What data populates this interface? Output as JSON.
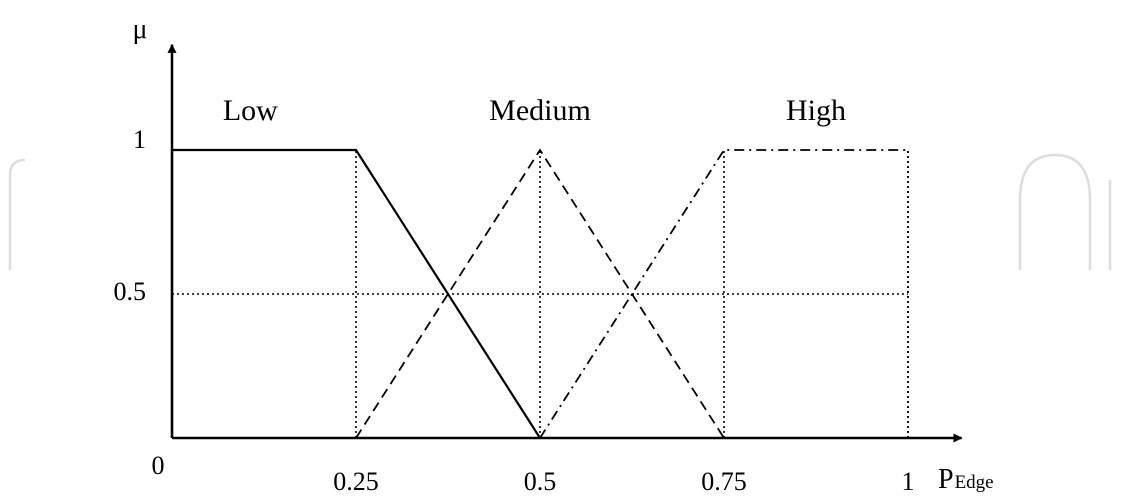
{
  "chart_data": {
    "type": "line",
    "title": "",
    "ylabel": "μ",
    "xlabel": {
      "main": "P",
      "subscript": "Edge"
    },
    "xlim": [
      0,
      1.1
    ],
    "ylim": [
      0,
      1.15
    ],
    "x_ticks": [
      {
        "value": 0,
        "label": "0"
      },
      {
        "value": 0.25,
        "label": "0.25"
      },
      {
        "value": 0.5,
        "label": "0.5"
      },
      {
        "value": 0.75,
        "label": "0.75"
      },
      {
        "value": 1,
        "label": "1"
      }
    ],
    "y_ticks": [
      {
        "value": 0.5,
        "label": "0.5"
      },
      {
        "value": 1,
        "label": "1"
      }
    ],
    "grid_lines": {
      "x": [
        0.25,
        0.5,
        0.75,
        1
      ],
      "y": [
        0.5
      ],
      "style": "dotted"
    },
    "series": [
      {
        "name": "Low",
        "style": "solid",
        "points": [
          [
            0,
            0
          ],
          [
            0,
            1
          ],
          [
            0.25,
            1
          ],
          [
            0.5,
            0
          ]
        ],
        "label_at": [
          0.12,
          1.08
        ]
      },
      {
        "name": "Medium",
        "style": "dashed",
        "points": [
          [
            0.25,
            0
          ],
          [
            0.5,
            1
          ],
          [
            0.75,
            0
          ]
        ],
        "label_at": [
          0.5,
          1.08
        ]
      },
      {
        "name": "High",
        "style": "dash-dot",
        "points": [
          [
            0.5,
            0
          ],
          [
            0.75,
            1
          ],
          [
            1,
            1
          ]
        ],
        "label_at": [
          0.875,
          1.08
        ]
      }
    ],
    "extra_lines": [
      {
        "style": "dotted",
        "points": [
          [
            1,
            0
          ],
          [
            1,
            1
          ]
        ]
      }
    ],
    "legend": "none"
  }
}
